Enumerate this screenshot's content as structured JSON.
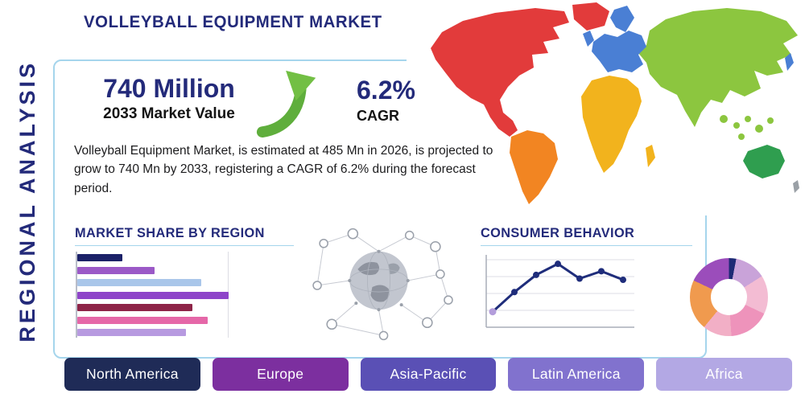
{
  "page": {
    "title": "VOLLEYBALL EQUIPMENT MARKET",
    "side_label": "REGIONAL ANALYSIS"
  },
  "stats": {
    "market_value": "740 Million",
    "market_value_caption": "2033 Market Value",
    "cagr_value": "6.2%",
    "cagr_caption": "CAGR",
    "description": "Volleyball Equipment Market, is estimated at 485 Mn in 2026, is projected to grow to 740 Mn by 2033, registering a CAGR of 6.2% during the forecast period."
  },
  "sections": {
    "market_share_title": "MARKET SHARE BY REGION",
    "consumer_behavior_title": "CONSUMER BEHAVIOR"
  },
  "colors": {
    "primary_navy": "#232a7a",
    "accent_light_blue": "#a5d5ec",
    "growth_green": "#72bf44",
    "text_dark": "#1c1c1e"
  },
  "region_chips": [
    {
      "label": "North America",
      "color": "#1f2b57"
    },
    {
      "label": "Europe",
      "color": "#7c2f9f"
    },
    {
      "label": "Asia-Pacific",
      "color": "#5a50b5"
    },
    {
      "label": "Latin America",
      "color": "#8172ce"
    },
    {
      "label": "Africa",
      "color": "#b3a8e4"
    }
  ],
  "map": {
    "region_colors": {
      "north-america": "#e23b3b",
      "greenland": "#e23b3b",
      "south-america": "#f28522",
      "europe": "#4a7fd4",
      "scandinavia": "#4a7fd4",
      "uk": "#4a7fd4",
      "japan": "#4a7fd4",
      "africa": "#f2b31d",
      "madagascar": "#f2b31d",
      "asia": "#8cc63f",
      "se-asia-islands": "#8cc63f",
      "australia": "#2f9e4f",
      "new-zealand": "#9aa0a6"
    }
  },
  "chart_data": [
    {
      "type": "bar",
      "title": "MARKET SHARE BY REGION",
      "orientation": "horizontal",
      "note": "no numeric axis labels shown; values are relative to the longest bar",
      "values_relative": [
        30,
        51,
        82,
        100,
        76,
        86,
        72
      ],
      "colors": [
        "#1b2168",
        "#9b59c7",
        "#a9c6ea",
        "#8e44c9",
        "#8e2448",
        "#e567a8",
        "#b79ae0"
      ],
      "grid": "single vertical gridline near maximum"
    },
    {
      "type": "line",
      "title": "CONSUMER BEHAVIOR",
      "x": [
        1,
        2,
        3,
        4,
        5,
        6,
        7
      ],
      "values": [
        1.0,
        2.6,
        4.0,
        4.9,
        3.7,
        4.3,
        3.6
      ],
      "ylim": [
        0,
        5.5
      ],
      "color": "#1f2d7b",
      "first_marker_color": "#b39ddb",
      "grid": true,
      "note": "upward trend with peak at point 4, no tick labels shown"
    },
    {
      "type": "pie",
      "subtype": "donut",
      "title": "regional share donut",
      "note": "no labels shown; segment sizes estimated from angles",
      "segments": [
        {
          "color": "#1d2a75",
          "value": 3
        },
        {
          "color": "#c9a3d9",
          "value": 13
        },
        {
          "color": "#f3bcd3",
          "value": 16
        },
        {
          "color": "#ee93bb",
          "value": 17
        },
        {
          "color": "#f2afc6",
          "value": 12
        },
        {
          "color": "#f09a4e",
          "value": 21
        },
        {
          "color": "#9b4dbb",
          "value": 18
        }
      ]
    }
  ]
}
